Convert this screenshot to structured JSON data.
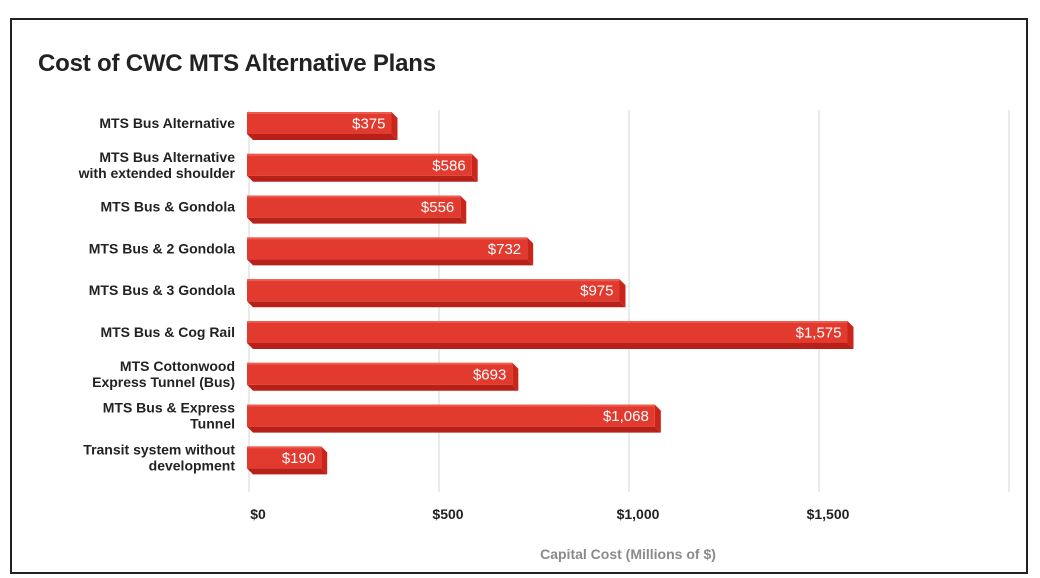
{
  "chart_data": {
    "type": "bar",
    "orientation": "horizontal",
    "style": "3d",
    "title": "Cost of CWC MTS Alternative Plans",
    "xlabel": "Capital Cost (Millions of $)",
    "ylabel": "",
    "xlim": [
      0,
      2000
    ],
    "xticks": [
      0,
      500,
      1000,
      1500
    ],
    "xtick_labels": [
      "$0",
      "$500",
      "$1,000",
      "$1,500"
    ],
    "grid": true,
    "legend": "none",
    "categories": [
      [
        "MTS Bus Alternative"
      ],
      [
        "MTS Bus Alternative",
        "with extended shoulder"
      ],
      [
        "MTS Bus & Gondola"
      ],
      [
        "MTS Bus & 2 Gondola"
      ],
      [
        "MTS Bus & 3 Gondola"
      ],
      [
        "MTS Bus & Cog Rail"
      ],
      [
        "MTS Cottonwood",
        "Express Tunnel (Bus)"
      ],
      [
        "MTS Bus & Express",
        "Tunnel"
      ],
      [
        "Transit system without",
        "development"
      ]
    ],
    "values": [
      375,
      586,
      556,
      732,
      975,
      1575,
      693,
      1068,
      190
    ],
    "data_labels": [
      "$375",
      "$586",
      "$556",
      "$732",
      "$975",
      "$1,575",
      "$693",
      "$1,068",
      "$190"
    ],
    "colors": {
      "bar_front": "#e23a2e",
      "bar_top": "#ee5a4e",
      "bar_side": "#c9251b",
      "bar_shadow": "#b8201a",
      "gridline": "#d4d4d4",
      "label_text": "#222222",
      "axis_title": "#8a8a8a",
      "value_text": "#ffffff"
    }
  }
}
